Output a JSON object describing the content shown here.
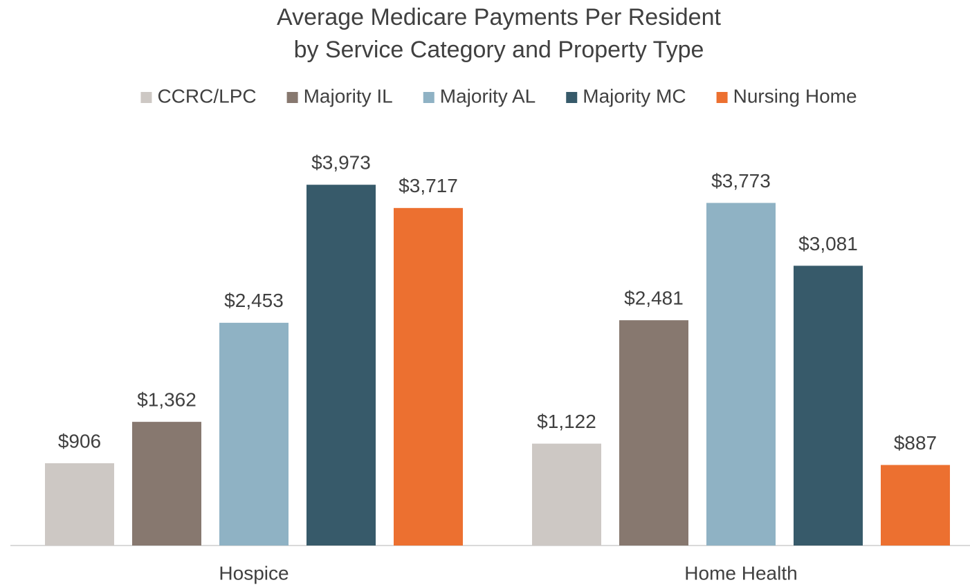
{
  "chart_data": {
    "type": "bar",
    "title": [
      "Average Medicare Payments Per Resident",
      "by Service Category and Property Type"
    ],
    "categories": [
      "Hospice",
      "Home Health"
    ],
    "series": [
      {
        "name": "CCRC/LPC",
        "color": "#cdc8c4",
        "values": [
          906,
          1122
        ],
        "value_labels": [
          "$906",
          "$1,122"
        ]
      },
      {
        "name": "Majority IL",
        "color": "#87786f",
        "values": [
          1362,
          2481
        ],
        "value_labels": [
          "$1,362",
          "$2,481"
        ]
      },
      {
        "name": "Majority AL",
        "color": "#8fb2c4",
        "values": [
          2453,
          3773
        ],
        "value_labels": [
          "$2,453",
          "$3,773"
        ]
      },
      {
        "name": "Majority MC",
        "color": "#375a6a",
        "values": [
          3973,
          3081
        ],
        "value_labels": [
          "$3,973",
          "$3,081"
        ]
      },
      {
        "name": "Nursing Home",
        "color": "#ec7030",
        "values": [
          3717,
          887
        ],
        "value_labels": [
          "$3,717",
          "$887"
        ]
      }
    ],
    "ylim": [
      0,
      4500
    ],
    "legend": "top"
  }
}
